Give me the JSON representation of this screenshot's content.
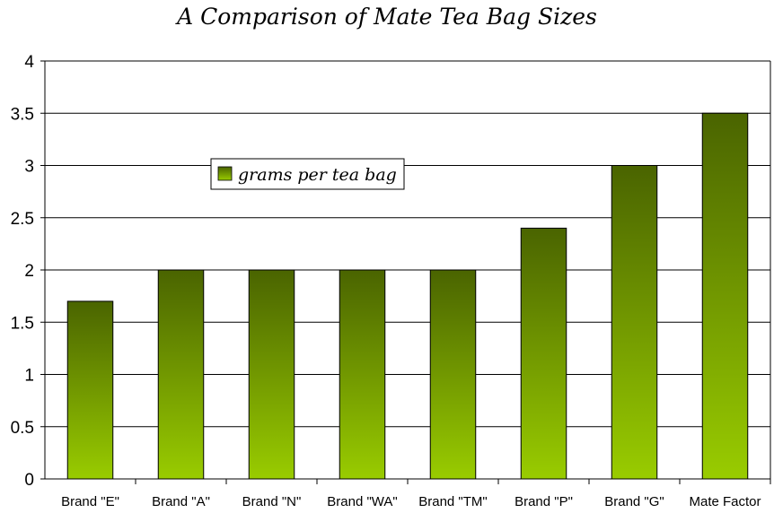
{
  "chart_data": {
    "type": "bar",
    "title": "A Comparison of Mate Tea Bag Sizes",
    "xlabel": "",
    "ylabel": "",
    "categories": [
      "Brand \"E\"",
      "Brand \"A\"",
      "Brand \"N\"",
      "Brand \"WA\"",
      "Brand \"TM\"",
      "Brand \"P\"",
      "Brand \"G\"",
      "Mate Factor"
    ],
    "series": [
      {
        "name": "grams per tea bag",
        "values": [
          1.7,
          2.0,
          2.0,
          2.0,
          2.0,
          2.4,
          3.0,
          3.5
        ]
      }
    ],
    "ylim": [
      0,
      4
    ],
    "yticks": [
      "0",
      "0.5",
      "1",
      "1.5",
      "2",
      "2.5",
      "3",
      "3.5",
      "4"
    ],
    "grid": true,
    "legend_position": "upper-left inside plot",
    "colors": {
      "bar_top": "#4a6400",
      "bar_bottom": "#99cc00",
      "grid": "#000000"
    }
  }
}
